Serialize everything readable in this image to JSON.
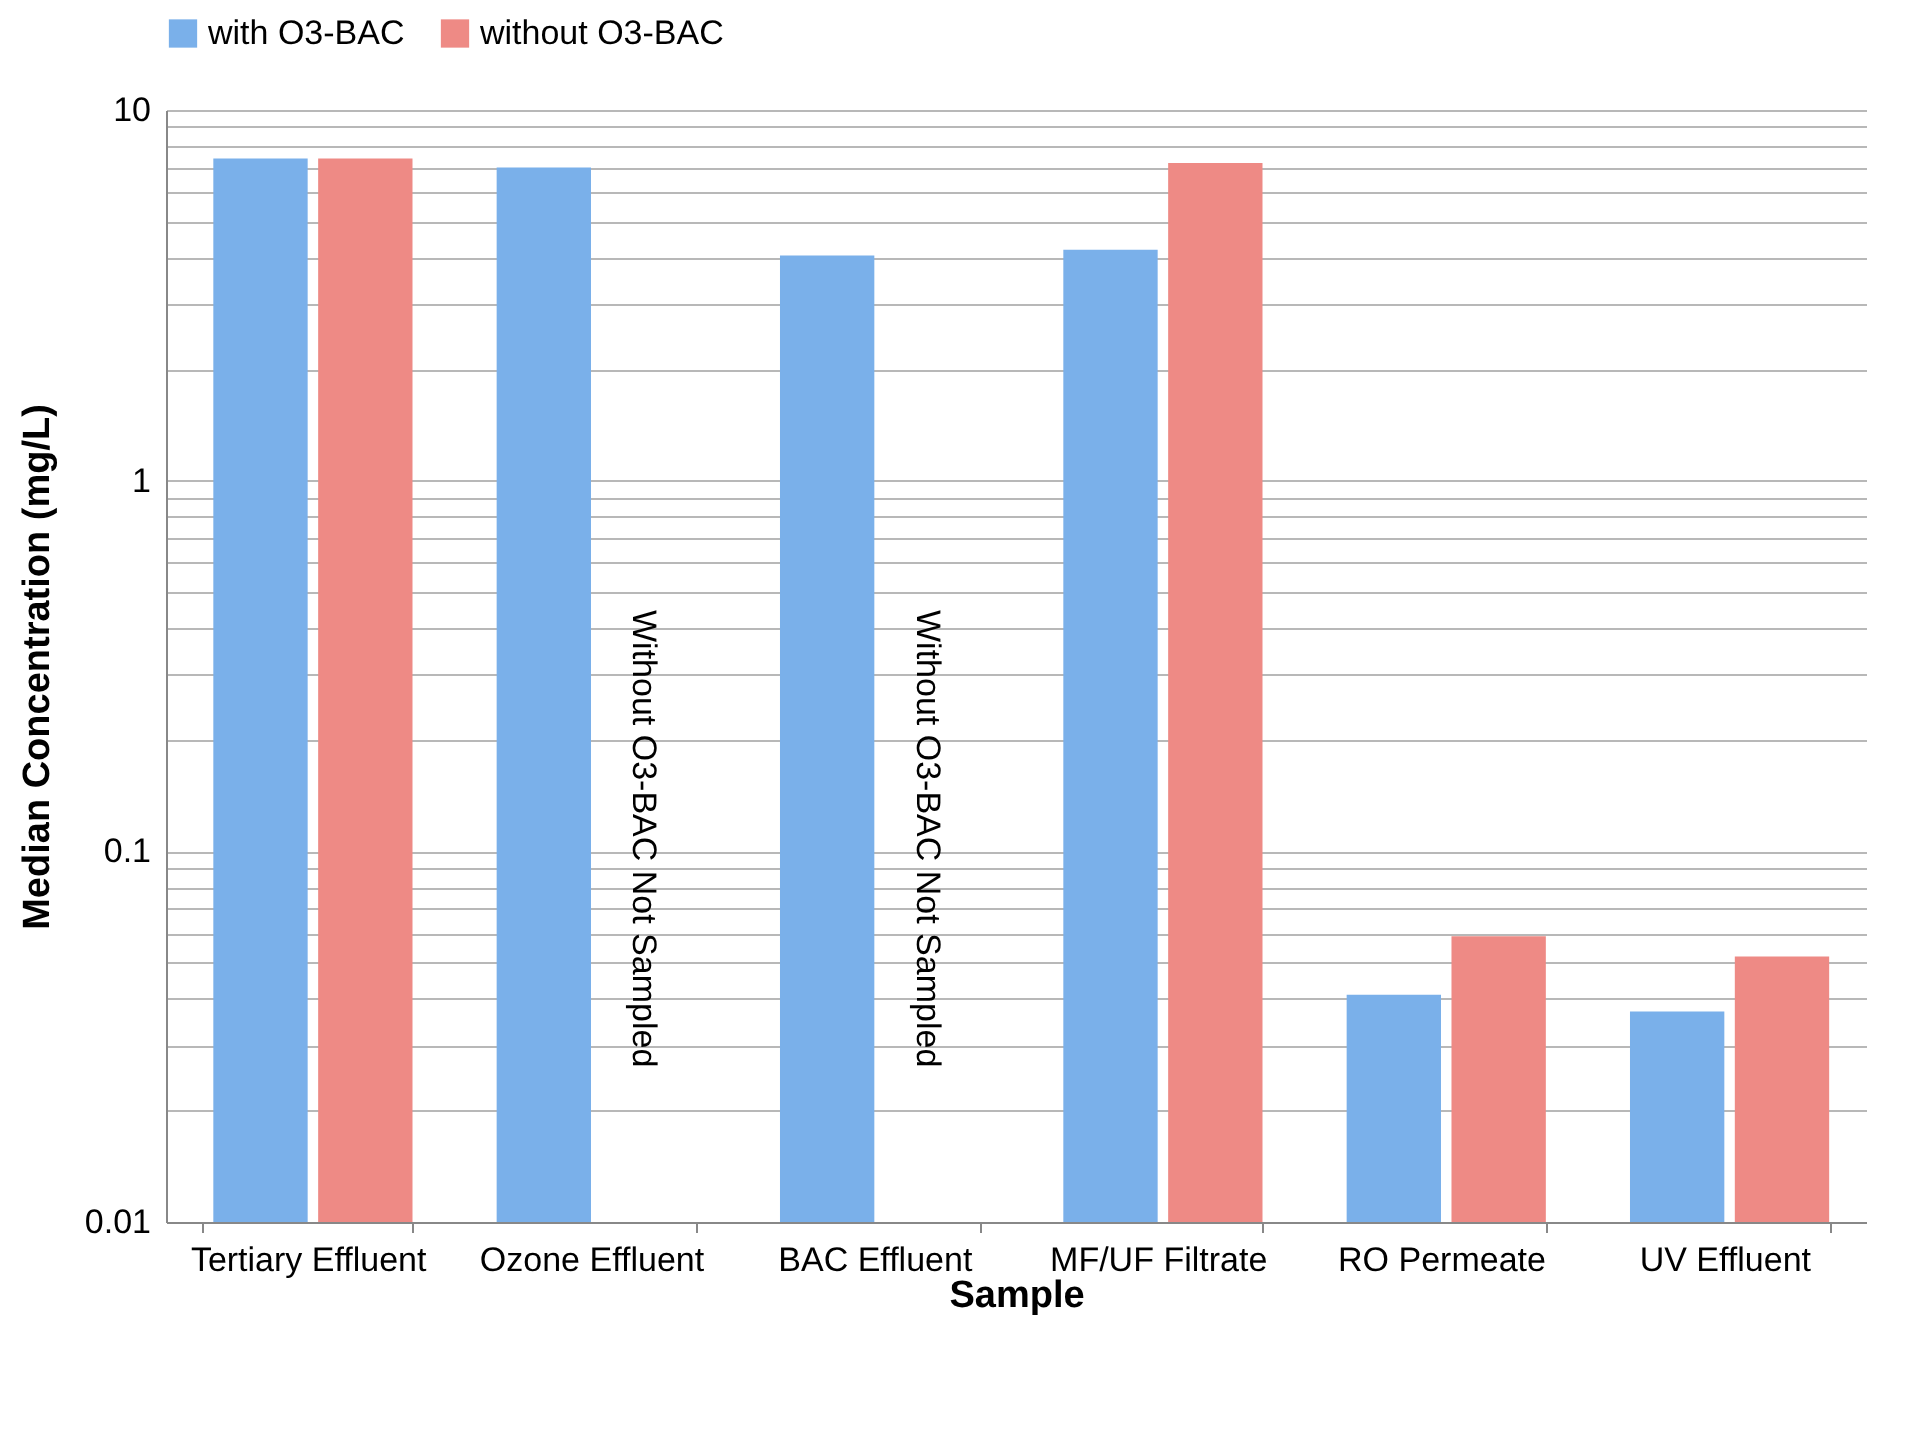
{
  "chart_data": {
    "type": "bar",
    "xlabel": "Sample",
    "ylabel": "Median Concentration (mg/L)",
    "categories": [
      "Tertiary Effluent",
      "Ozone Effluent",
      "BAC Effluent",
      "MF/UF Filtrate",
      "RO Permeate",
      "UV Effluent"
    ],
    "series": [
      {
        "name": "with O3-BAC",
        "color": "#7ab0ea",
        "values": [
          7.4,
          7.0,
          4.05,
          4.2,
          0.041,
          0.037
        ]
      },
      {
        "name": "without O3-BAC",
        "color": "#ee8a85",
        "values": [
          7.4,
          null,
          null,
          7.2,
          0.059,
          0.052
        ]
      }
    ],
    "log": "y",
    "ylim": [
      0.01,
      10
    ],
    "yticks": [
      0.01,
      {
        "value": 0.02,
        "label": null
      },
      {
        "value": 0.03,
        "label": null
      },
      {
        "value": 0.04,
        "label": null
      },
      {
        "value": 0.05,
        "label": null
      },
      {
        "value": 0.06,
        "label": null
      },
      {
        "value": 0.07,
        "label": null
      },
      {
        "value": 0.08,
        "label": null
      },
      {
        "value": 0.09,
        "label": null
      },
      0.1,
      {
        "value": 0.2,
        "label": null
      },
      {
        "value": 0.3,
        "label": null
      },
      {
        "value": 0.4,
        "label": null
      },
      {
        "value": 0.5,
        "label": null
      },
      {
        "value": 0.6,
        "label": null
      },
      {
        "value": 0.7,
        "label": null
      },
      {
        "value": 0.8,
        "label": null
      },
      {
        "value": 0.9,
        "label": null
      },
      1,
      {
        "value": 2,
        "label": null
      },
      {
        "value": 3,
        "label": null
      },
      {
        "value": 4,
        "label": null
      },
      {
        "value": 5,
        "label": null
      },
      {
        "value": 6,
        "label": null
      },
      {
        "value": 7,
        "label": null
      },
      {
        "value": 8,
        "label": null
      },
      {
        "value": 9,
        "label": null
      },
      10
    ],
    "grid": "y",
    "legend": "top",
    "annotations": [
      "Without O3-BAC Not Sampled",
      "Without O3-BAC Not Sampled"
    ]
  }
}
